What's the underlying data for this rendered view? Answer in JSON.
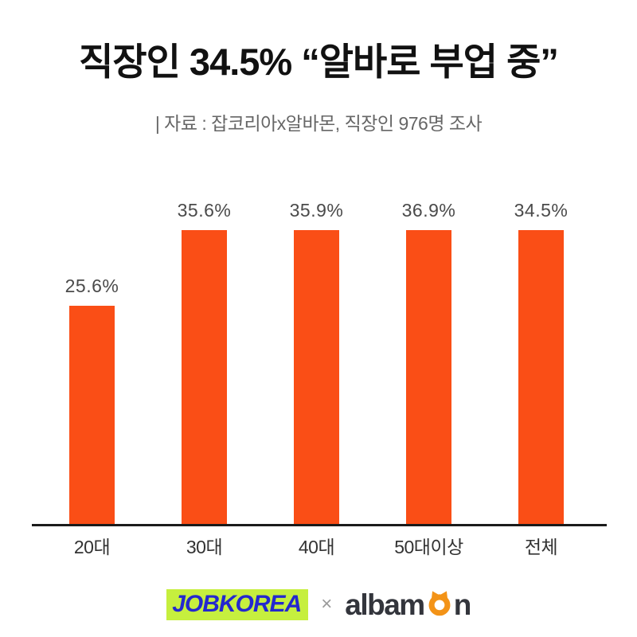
{
  "header": {
    "title": "직장인 34.5% “알바로 부업 중”",
    "subtitle": "| 자료 : 잡코리아x알바몬,  직장인 976명 조사"
  },
  "chart_data": {
    "type": "bar",
    "categories": [
      "20대",
      "30대",
      "40대",
      "50대이상",
      "전체"
    ],
    "values": [
      25.6,
      35.6,
      35.9,
      36.9,
      34.5
    ],
    "value_labels": [
      "25.6%",
      "35.6%",
      "35.9%",
      "36.9%",
      "34.5%"
    ],
    "title": "직장인 34.5% “알바로 부업 중”",
    "xlabel": "",
    "ylabel": "",
    "ylim": [
      0,
      38
    ],
    "grid": false,
    "legend": false,
    "bar_color": "#fa4e16",
    "value_label_color": "#4a4a4a",
    "category_label_color": "#333333",
    "axis_color": "#1b1b1b"
  },
  "footer": {
    "jobkorea": {
      "text": "JOBKOREA",
      "text_color": "#2428cf",
      "highlight_color": "#c6ef3e"
    },
    "separator": "×",
    "albamon": {
      "text_before_icon": "albam",
      "text_after_icon": "n",
      "text_color": "#33353c",
      "icon": "cat-face-icon",
      "icon_color": "#f39317"
    }
  }
}
